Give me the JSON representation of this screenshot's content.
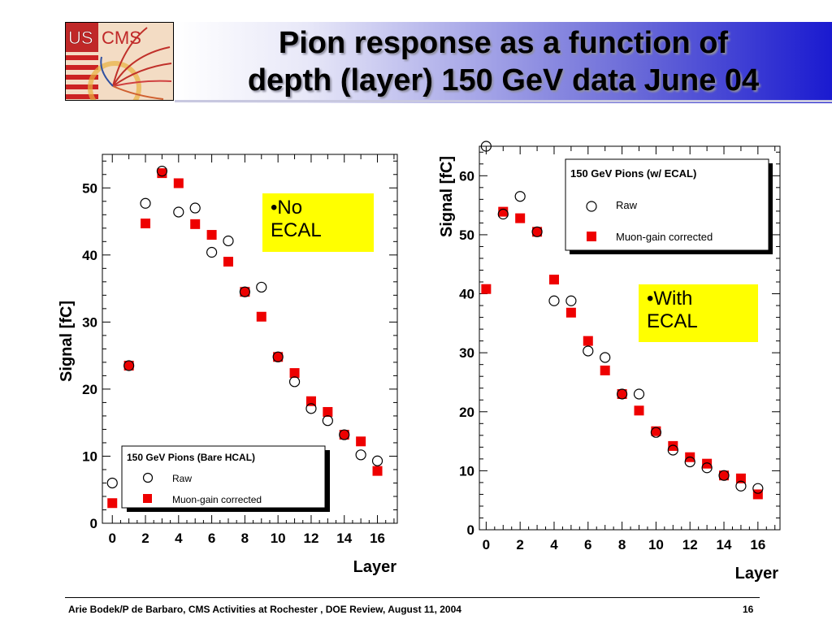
{
  "slide": {
    "title_line1": "Pion response as a function of",
    "title_line2": "depth (layer) 150 GeV data June 04",
    "logo_text_us": "US",
    "logo_text_cms": "CMS",
    "footer": "Arie Bodek/P de Barbaro, CMS Activities at Rochester  , DOE Review, August 11, 2004",
    "page_number": "16"
  },
  "notes": {
    "left_line1": "•No",
    "left_line2": "ECAL",
    "right_line1": "•With",
    "right_line2": "ECAL"
  },
  "colors": {
    "corrected": "#ee0000",
    "note_bg": "#ffff00"
  },
  "chart_data": [
    {
      "type": "scatter",
      "xlabel": "Layer",
      "ylabel": "Signal [fC]",
      "xlim": [
        -0.6,
        17.2
      ],
      "ylim": [
        0,
        55
      ],
      "xticks": [
        0,
        2,
        4,
        6,
        8,
        10,
        12,
        14,
        16
      ],
      "yticks": [
        0,
        10,
        20,
        30,
        40,
        50
      ],
      "legend": {
        "title": "150 GeV Pions  (Bare HCAL)",
        "entries": [
          "Raw",
          "Muon-gain corrected"
        ],
        "placement": "bottom-left"
      },
      "series": [
        {
          "name": "Raw",
          "marker": "open-circle",
          "x": [
            0,
            1,
            2,
            3,
            4,
            5,
            6,
            7,
            8,
            9,
            10,
            11,
            12,
            13,
            14,
            15,
            16
          ],
          "y": [
            6.0,
            23.5,
            47.7,
            52.5,
            46.4,
            47.0,
            40.4,
            42.1,
            34.5,
            35.2,
            24.8,
            21.1,
            17.1,
            15.3,
            13.2,
            10.2,
            9.3
          ]
        },
        {
          "name": "Muon-gain corrected",
          "marker": "filled-square",
          "x": [
            0,
            1,
            2,
            3,
            4,
            5,
            6,
            7,
            8,
            9,
            10,
            11,
            12,
            13,
            14,
            15,
            16
          ],
          "y": [
            3.0,
            23.5,
            44.7,
            52.2,
            50.7,
            44.6,
            43.0,
            39.0,
            34.5,
            30.8,
            24.8,
            22.4,
            18.2,
            16.6,
            13.2,
            12.2,
            7.8
          ]
        }
      ]
    },
    {
      "type": "scatter",
      "xlabel": "Layer",
      "ylabel": "Signal [fC]",
      "xlim": [
        -0.4,
        17.3
      ],
      "ylim": [
        0,
        65
      ],
      "xticks": [
        0,
        2,
        4,
        6,
        8,
        10,
        12,
        14,
        16
      ],
      "yticks": [
        0,
        10,
        20,
        30,
        40,
        50,
        60
      ],
      "legend": {
        "title": "150 GeV Pions (w/ ECAL)",
        "entries": [
          "Raw",
          "Muon-gain corrected"
        ],
        "placement": "top-right"
      },
      "series": [
        {
          "name": "Raw",
          "marker": "open-circle",
          "x": [
            0,
            1,
            2,
            3,
            4,
            5,
            6,
            7,
            8,
            9,
            10,
            11,
            12,
            13,
            14,
            15,
            16
          ],
          "y": [
            65.0,
            53.5,
            56.5,
            50.5,
            38.8,
            38.8,
            30.3,
            29.2,
            23.0,
            23.0,
            16.5,
            13.5,
            11.5,
            10.5,
            9.2,
            7.4,
            7.0
          ]
        },
        {
          "name": "Muon-gain corrected",
          "marker": "filled-square",
          "x": [
            0,
            1,
            2,
            3,
            4,
            5,
            6,
            7,
            8,
            9,
            10,
            11,
            12,
            13,
            14,
            15,
            16
          ],
          "y": [
            40.8,
            53.9,
            52.8,
            50.5,
            42.4,
            36.8,
            32.0,
            27.0,
            23.0,
            20.2,
            16.7,
            14.2,
            12.3,
            11.2,
            9.2,
            8.7,
            6.0
          ]
        }
      ]
    }
  ]
}
